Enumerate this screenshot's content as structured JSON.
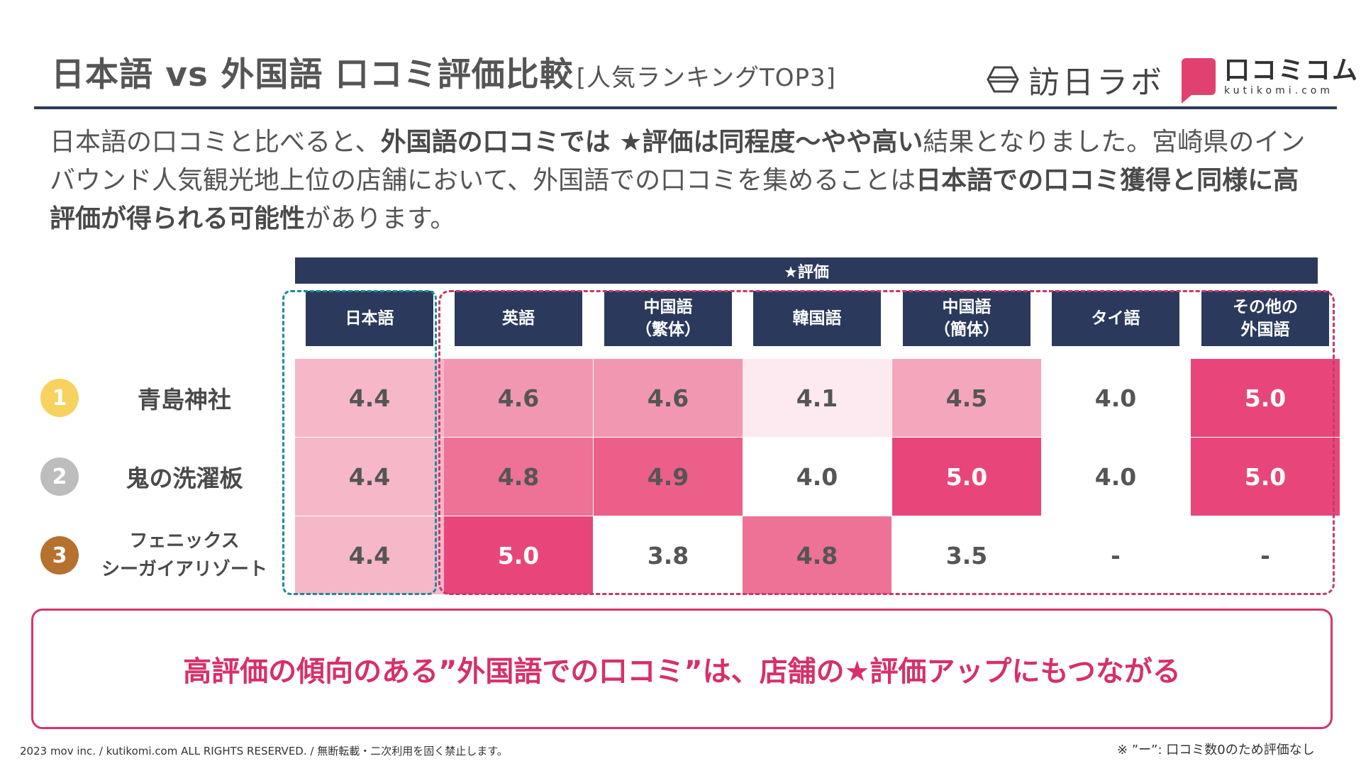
{
  "header": {
    "title": "日本語 vs 外国語 口コミ評価比較",
    "subtitle": "[人気ランキングTOP3]",
    "logo_houjin": "訪日ラボ",
    "logo_kutikomi_jp": "口コミコム",
    "logo_kutikomi_en": "kutikomi.com"
  },
  "intro": {
    "t1": "日本語の口コミと比べると、",
    "b1": "外国語の口コミでは ★評価は同程度〜やや高い",
    "t2": "結果となりました。宮崎県のインバウンド人気観光地上位の店舗において、外国語での口コミを集めることは",
    "b2": "日本語での口コミ獲得と同様に高評価が得られる可能性",
    "t3": "があります。"
  },
  "table": {
    "group_header": "★評価",
    "columns": [
      "日本語",
      "英語",
      "中国語\n（繁体）",
      "韓国語",
      "中国語\n（簡体）",
      "タイ語",
      "その他の\n外国語"
    ],
    "rows": [
      {
        "rank": "1",
        "rank_color": "#f7d25e",
        "name": "青島神社",
        "values": [
          "4.4",
          "4.6",
          "4.6",
          "4.1",
          "4.5",
          "4.0",
          "5.0"
        ]
      },
      {
        "rank": "2",
        "rank_color": "#bdbdbd",
        "name": "鬼の洗濯板",
        "values": [
          "4.4",
          "4.8",
          "4.9",
          "4.0",
          "5.0",
          "4.0",
          "5.0"
        ]
      },
      {
        "rank": "3",
        "rank_color": "#b5712d",
        "name": "フェニックス\nシーガイアリゾート",
        "values": [
          "4.4",
          "5.0",
          "3.8",
          "4.8",
          "3.5",
          "-",
          "-"
        ]
      }
    ],
    "heat_colors": {
      "3.5": "#ffffff",
      "3.8": "#ffffff",
      "4.0": "#ffffff",
      "-": "#ffffff",
      "4.1": "#fdeaf0",
      "4.4": "#f6b7c9",
      "4.5": "#f4a6bd",
      "4.6": "#f297b2",
      "4.8": "#ee7196",
      "4.9": "#ec5f89",
      "5.0": "#e8467a"
    }
  },
  "conclusion": "高評価の傾向のある”外国語での口コミ”は、店舗の★評価アップにもつながる",
  "footer": {
    "copyright": "2023 mov inc. / kutikomi.com ALL RIGHTS RESERVED. / 無断転載・二次利用を固く禁止します。",
    "note": "※ ”ー”: 口コミ数0のため評価なし"
  }
}
